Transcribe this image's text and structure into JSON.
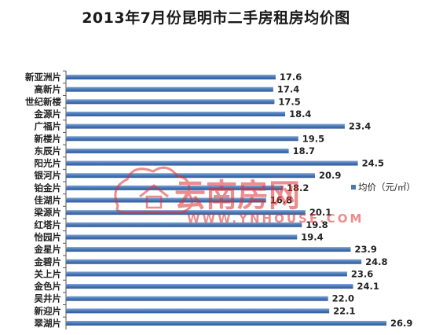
{
  "chart_data": {
    "type": "bar",
    "orientation": "horizontal",
    "title": "2013年7月份昆明市二手房租房均价图",
    "categories": [
      "新亚洲片",
      "高新片",
      "世纪新楼",
      "金源片",
      "广福片",
      "新楼片",
      "东辰片",
      "阳光片",
      "银河片",
      "铂金片",
      "佳湖片",
      "梁源片",
      "红塔片",
      "怡园片",
      "金星片",
      "金碧片",
      "关上片",
      "金色片",
      "吴井片",
      "新迎片",
      "翠湖片"
    ],
    "series": [
      {
        "name": "均价（元/㎡）",
        "values": [
          17.6,
          17.4,
          17.5,
          18.4,
          23.4,
          19.5,
          18.7,
          24.5,
          20.9,
          18.2,
          16.8,
          20.1,
          19.8,
          19.4,
          23.9,
          24.8,
          23.6,
          24.1,
          22.0,
          22.1,
          26.9
        ],
        "labels": [
          "17.6",
          "17.4",
          "17.5",
          "18.4",
          "23.4",
          "19.5",
          "18.7",
          "24.5",
          "20.9",
          "18.2",
          "16.8",
          "20.1",
          "19.8",
          "19.4",
          "23.9",
          "24.8",
          "23.6",
          "24.1",
          "22.0",
          "22.1",
          "26.9"
        ]
      }
    ],
    "xlim": [
      0,
      30
    ],
    "grid": false,
    "legend_position": "right",
    "bar_color": "#4a78b6"
  },
  "watermark": {
    "logo_text": "云南房网",
    "url_text": "WWW.YNHOUSE.COM",
    "color": "#e03030"
  }
}
